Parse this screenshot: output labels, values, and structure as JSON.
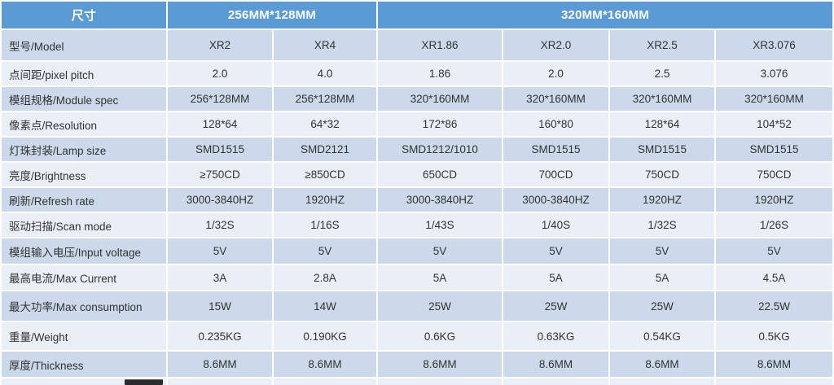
{
  "table": {
    "header": {
      "size_label": "尺寸",
      "group_256": "256MM*128MM",
      "group_320": "320MM*160MM"
    },
    "rows": [
      {
        "label": "型号/Model",
        "values": [
          "XR2",
          "XR4",
          "XR1.86",
          "XR2.0",
          "XR2.5",
          "XR3.076"
        ]
      },
      {
        "label": "点间距/pixel pitch",
        "values": [
          "2.0",
          "4.0",
          "1.86",
          "2.0",
          "2.5",
          "3.076"
        ]
      },
      {
        "label": "模组规格/Module spec",
        "values": [
          "256*128MM",
          "256*128MM",
          "320*160MM",
          "320*160MM",
          "320*160MM",
          "320*160MM"
        ]
      },
      {
        "label": "像素点/Resolution",
        "values": [
          "128*64",
          "64*32",
          "172*86",
          "160*80",
          "128*64",
          "104*52"
        ]
      },
      {
        "label": "灯珠封装/Lamp size",
        "values": [
          "SMD1515",
          "SMD2121",
          "SMD1212/1010",
          "SMD1515",
          "SMD1515",
          "SMD1515"
        ]
      },
      {
        "label": "亮度/Brightness",
        "values": [
          "≥750CD",
          "≥850CD",
          "650CD",
          "700CD",
          "750CD",
          "750CD"
        ]
      },
      {
        "label": "刷新/Refresh rate",
        "values": [
          "3000-3840HZ",
          "1920HZ",
          "3000-3840HZ",
          "3000-3840HZ",
          "1920HZ",
          "1920HZ"
        ]
      },
      {
        "label": "驱动扫描/Scan mode",
        "values": [
          "1/32S",
          "1/16S",
          "1/43S",
          "1/40S",
          "1/32S",
          "1/26S"
        ]
      },
      {
        "label": "模组输入电压/Input voltage",
        "values": [
          "5V",
          "5V",
          "5V",
          "5V",
          "5V",
          "5V"
        ]
      },
      {
        "label": "最高电流/Max Current",
        "values": [
          "3A",
          "2.8A",
          "5A",
          "5A",
          "5A",
          "4.5A"
        ]
      },
      {
        "label": "最大功率/Max consumption",
        "values": [
          "15W",
          "14W",
          "25W",
          "25W",
          "25W",
          "22.5W"
        ]
      },
      {
        "label": "重量/Weight",
        "values": [
          "0.235KG",
          "0.190KG",
          "0.6KG",
          "0.63KG",
          "0.54KG",
          "0.5KG"
        ]
      },
      {
        "label": "厚度/Thickness",
        "values": [
          "8.6MM",
          "8.6MM",
          "8.6MM",
          "8.6MM",
          "8.6MM",
          "8.6MM"
        ]
      }
    ],
    "colors": {
      "header_bg": "#5B9BD5",
      "header_text": "#FFFFFF",
      "row_dark": "#CCD9EA",
      "row_light": "#E9EEF7",
      "body_text": "#333333"
    }
  }
}
